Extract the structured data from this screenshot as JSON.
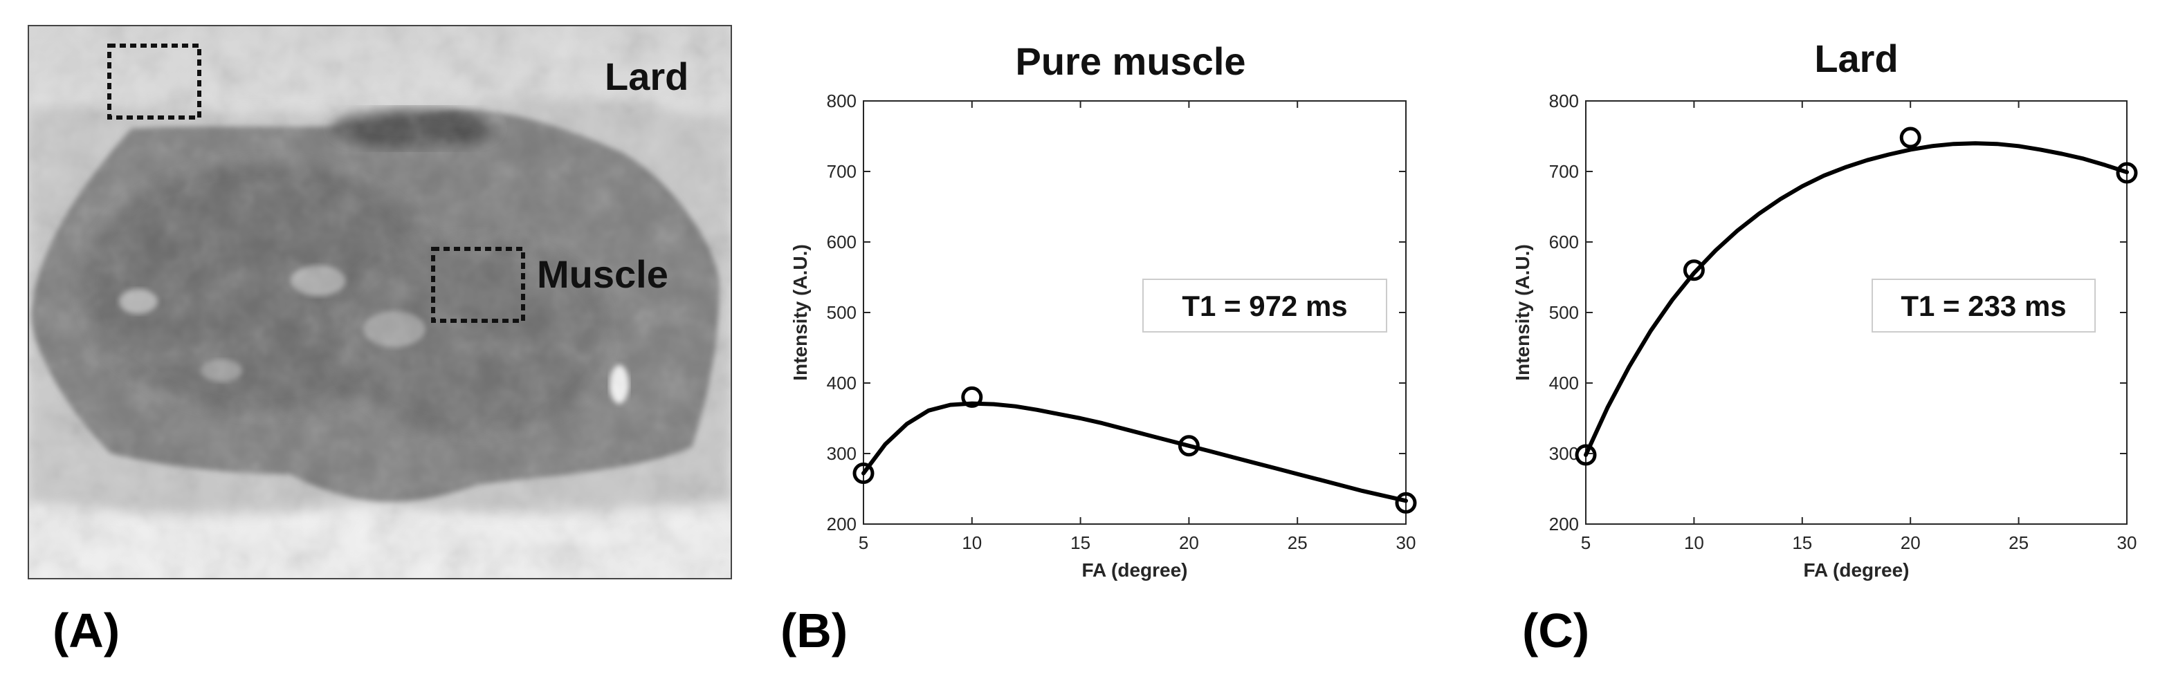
{
  "panel_labels": {
    "a": "(A)",
    "b": "(B)",
    "c": "(C)"
  },
  "image_panel": {
    "description_labels": {
      "lard": "Lard",
      "muscle": "Muscle"
    }
  },
  "colors": {
    "line": "#000000",
    "axis": "#000000",
    "grid": "#262626",
    "box": "#cccccc"
  },
  "chart_data": [
    {
      "type": "line",
      "title": "Pure muscle",
      "xlabel": "FA (degree)",
      "ylabel": "Intensity (A.U.)",
      "xlim": [
        5,
        30
      ],
      "ylim": [
        200,
        800
      ],
      "xticks": [
        5,
        10,
        15,
        20,
        25,
        30
      ],
      "yticks": [
        200,
        300,
        400,
        500,
        600,
        700,
        800
      ],
      "points": {
        "x": [
          5,
          10,
          20,
          30
        ],
        "y": [
          272,
          380,
          311,
          230
        ]
      },
      "fit_curve": {
        "x": [
          5,
          6,
          7,
          8,
          9,
          10,
          11,
          12,
          13,
          14,
          15,
          16,
          17,
          18,
          19,
          20,
          21,
          22,
          23,
          24,
          25,
          26,
          27,
          28,
          29,
          30
        ],
        "y": [
          272,
          313,
          342,
          361,
          369,
          371,
          370,
          367,
          362,
          356,
          350,
          343,
          335,
          327,
          319,
          311,
          303,
          295,
          287,
          279,
          271,
          263,
          255,
          247,
          240,
          233
        ]
      },
      "annotation": "T1 = 972 ms"
    },
    {
      "type": "line",
      "title": "Lard",
      "xlabel": "FA (degree)",
      "ylabel": "Intensity (A.U.)",
      "xlim": [
        5,
        30
      ],
      "ylim": [
        200,
        800
      ],
      "xticks": [
        5,
        10,
        15,
        20,
        25,
        30
      ],
      "yticks": [
        200,
        300,
        400,
        500,
        600,
        700,
        800
      ],
      "points": {
        "x": [
          5,
          10,
          20,
          30
        ],
        "y": [
          298,
          560,
          748,
          698
        ]
      },
      "fit_curve": {
        "x": [
          5,
          6,
          7,
          8,
          9,
          10,
          11,
          12,
          13,
          14,
          15,
          16,
          17,
          18,
          19,
          20,
          21,
          22,
          23,
          24,
          25,
          26,
          27,
          28,
          29,
          30
        ],
        "y": [
          298,
          365,
          423,
          474,
          518,
          556,
          588,
          616,
          640,
          661,
          679,
          694,
          706,
          716,
          724,
          731,
          736,
          739,
          740,
          739,
          736,
          731,
          725,
          718,
          709,
          699
        ]
      },
      "annotation": "T1 = 233 ms"
    }
  ]
}
